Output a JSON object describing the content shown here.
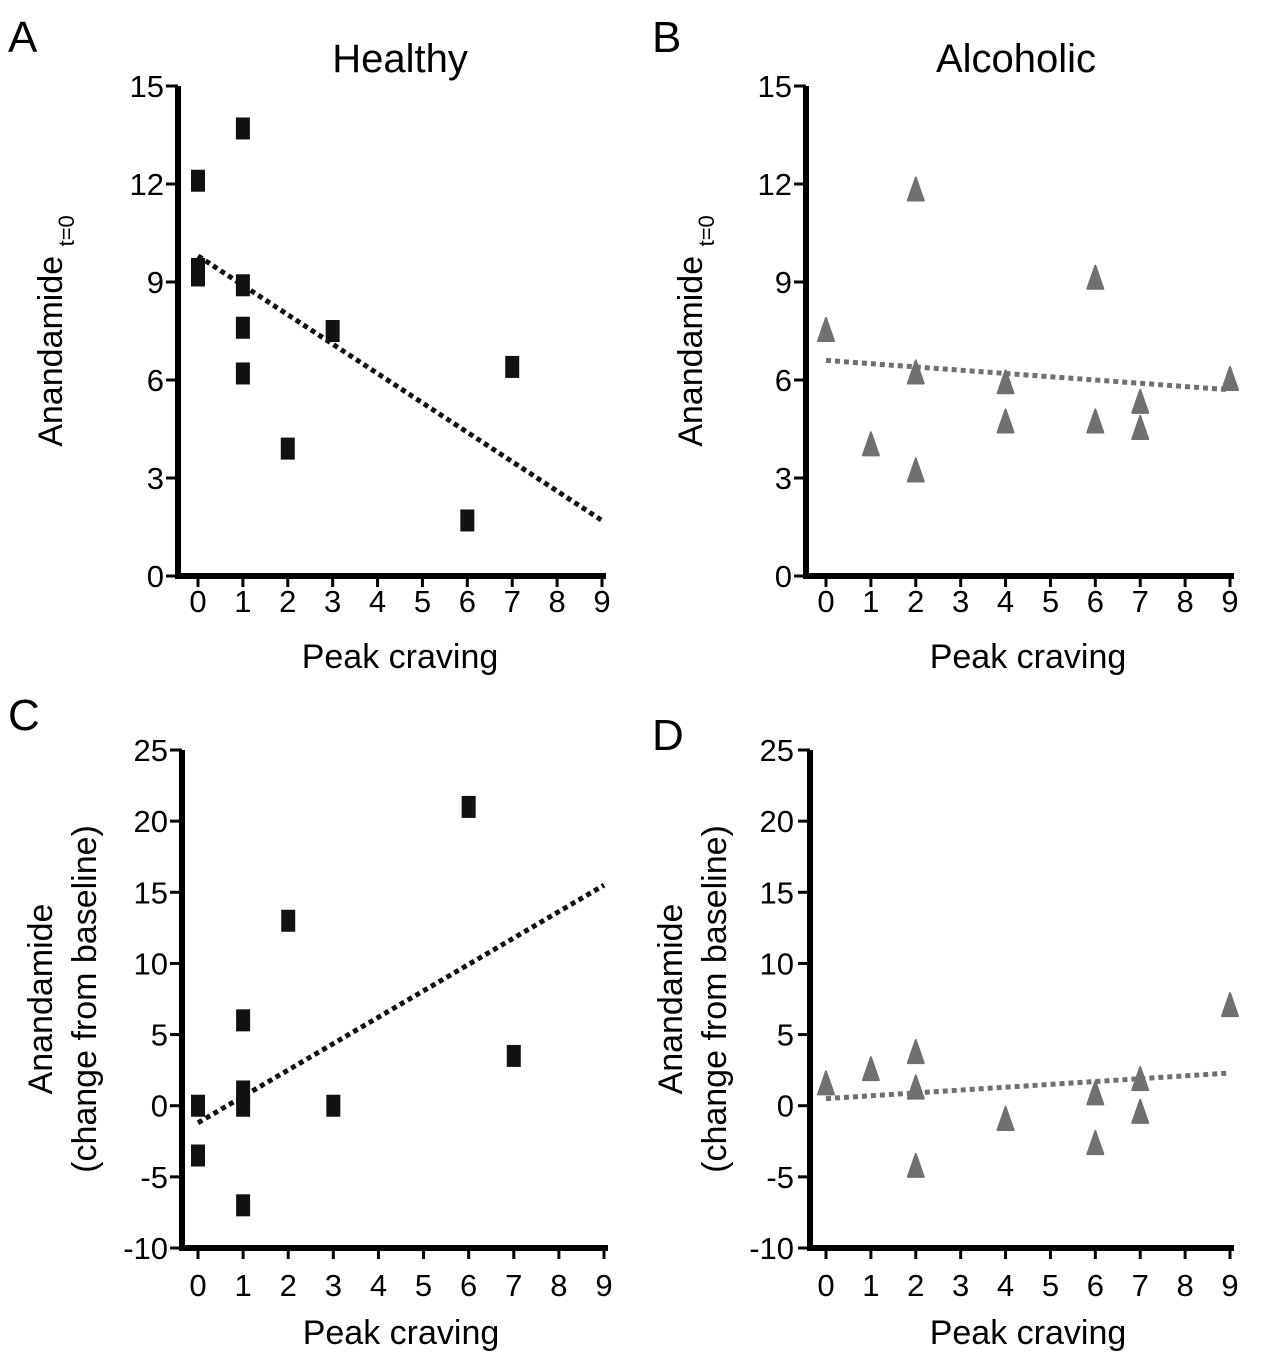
{
  "colors": {
    "healthy": "#111111",
    "alcoholic": "#707070"
  },
  "chart_data": [
    {
      "panel": "A",
      "title": "Healthy",
      "type": "scatter",
      "marker": "square",
      "color": "#111111",
      "xlabel": "Peak craving",
      "ylabel": "Anandamide",
      "ylabel_sub": "t=0",
      "xlim": [
        0,
        9
      ],
      "ylim": [
        0,
        15
      ],
      "xticks": [
        "0",
        "1",
        "2",
        "3",
        "4",
        "5",
        "6",
        "7",
        "8",
        "9"
      ],
      "yticks": [
        "0",
        "3",
        "6",
        "9",
        "12",
        "15"
      ],
      "points": [
        [
          0,
          12.1
        ],
        [
          0,
          9.4
        ],
        [
          0,
          9.2
        ],
        [
          1,
          13.7
        ],
        [
          1,
          8.9
        ],
        [
          1,
          7.6
        ],
        [
          1,
          6.2
        ],
        [
          2,
          3.9
        ],
        [
          3,
          7.5
        ],
        [
          6,
          1.7
        ],
        [
          7,
          6.4
        ]
      ],
      "trendline": [
        [
          0,
          9.8
        ],
        [
          9,
          1.7
        ]
      ]
    },
    {
      "panel": "B",
      "title": "Alcoholic",
      "type": "scatter",
      "marker": "triangle",
      "color": "#707070",
      "xlabel": "Peak craving",
      "ylabel": "Anandamide",
      "ylabel_sub": "t=0",
      "xlim": [
        0,
        9
      ],
      "ylim": [
        0,
        15
      ],
      "xticks": [
        "0",
        "1",
        "2",
        "3",
        "4",
        "5",
        "6",
        "7",
        "8",
        "9"
      ],
      "yticks": [
        "0",
        "3",
        "6",
        "9",
        "12",
        "15"
      ],
      "points": [
        [
          0,
          7.5
        ],
        [
          1,
          4.0
        ],
        [
          2,
          11.8
        ],
        [
          2,
          6.2
        ],
        [
          2,
          3.2
        ],
        [
          4,
          5.9
        ],
        [
          4,
          4.7
        ],
        [
          6,
          9.1
        ],
        [
          6,
          4.7
        ],
        [
          7,
          5.3
        ],
        [
          7,
          4.5
        ],
        [
          9,
          6.0
        ]
      ],
      "trendline": [
        [
          0,
          6.6
        ],
        [
          9,
          5.7
        ]
      ]
    },
    {
      "panel": "C",
      "title": "",
      "type": "scatter",
      "marker": "square",
      "color": "#111111",
      "xlabel": "Peak craving",
      "ylabel": "Anandamide",
      "ylabel2": "(change from baseline)",
      "xlim": [
        0,
        9
      ],
      "ylim": [
        -10,
        25
      ],
      "xticks": [
        "0",
        "1",
        "2",
        "3",
        "4",
        "5",
        "6",
        "7",
        "8",
        "9"
      ],
      "yticks": [
        "-10",
        "-5",
        "0",
        "5",
        "10",
        "15",
        "20",
        "25"
      ],
      "points": [
        [
          0,
          0
        ],
        [
          0,
          -3.5
        ],
        [
          1,
          6
        ],
        [
          1,
          1
        ],
        [
          1,
          0
        ],
        [
          1,
          -7
        ],
        [
          2,
          13
        ],
        [
          3,
          0
        ],
        [
          6,
          21
        ],
        [
          7,
          3.5
        ]
      ],
      "trendline": [
        [
          0,
          -1.2
        ],
        [
          9,
          15.5
        ]
      ]
    },
    {
      "panel": "D",
      "title": "",
      "type": "scatter",
      "marker": "triangle",
      "color": "#707070",
      "xlabel": "Peak craving",
      "ylabel": "Anandamide",
      "ylabel2": "(change from baseline)",
      "xlim": [
        0,
        9
      ],
      "ylim": [
        -10,
        25
      ],
      "xticks": [
        "0",
        "1",
        "2",
        "3",
        "4",
        "5",
        "6",
        "7",
        "8",
        "9"
      ],
      "yticks": [
        "-10",
        "-5",
        "0",
        "5",
        "10",
        "15",
        "20",
        "25"
      ],
      "points": [
        [
          0,
          1.5
        ],
        [
          1,
          2.5
        ],
        [
          2,
          3.7
        ],
        [
          2,
          1.2
        ],
        [
          2,
          -4.3
        ],
        [
          4,
          -1
        ],
        [
          6,
          0.8
        ],
        [
          6,
          -2.7
        ],
        [
          7,
          1.8
        ],
        [
          7,
          -0.5
        ],
        [
          9,
          7
        ]
      ],
      "trendline": [
        [
          0,
          0.5
        ],
        [
          9,
          2.3
        ]
      ]
    }
  ]
}
